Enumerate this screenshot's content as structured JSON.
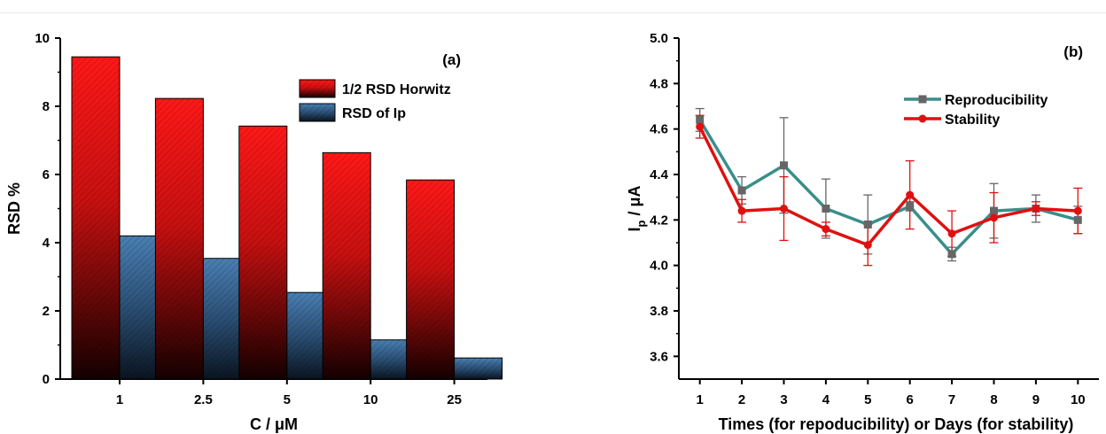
{
  "chart_data": [
    {
      "type": "bar",
      "panel_label": "(a)",
      "xlabel": "C / μM",
      "ylabel": "RSD %",
      "categories": [
        "1",
        "2.5",
        "5",
        "10",
        "25"
      ],
      "ylim": [
        0,
        10
      ],
      "yticks": [
        "0",
        "2",
        "4",
        "6",
        "8",
        "10"
      ],
      "series": [
        {
          "name": "1/2 RSD Horwitz",
          "values": [
            9.45,
            8.23,
            7.42,
            6.64,
            5.84
          ],
          "color": "#e01818"
        },
        {
          "name": "RSD of Ip",
          "values": [
            4.2,
            3.54,
            2.54,
            1.15,
            0.62
          ],
          "color": "#3d6d9e"
        }
      ],
      "legend_position": "top-right",
      "grid": false
    },
    {
      "type": "line",
      "panel_label": "(b)",
      "xlabel": "Times (for repoducibility) or Days (for stability)",
      "ylabel": "Ip / μA",
      "x": [
        1,
        2,
        3,
        4,
        5,
        6,
        7,
        8,
        9,
        10
      ],
      "xlim": [
        0.5,
        10.5
      ],
      "ylim": [
        3.5,
        5.0
      ],
      "yticks": [
        "3.6",
        "3.8",
        "4.0",
        "4.2",
        "4.4",
        "4.6",
        "4.8",
        "5.0"
      ],
      "xticks": [
        "1",
        "2",
        "3",
        "4",
        "5",
        "6",
        "7",
        "8",
        "9",
        "10"
      ],
      "series": [
        {
          "name": "Reproducibility",
          "color": "#3a8e8a",
          "marker": "square",
          "values": [
            4.64,
            4.33,
            4.44,
            4.25,
            4.18,
            4.26,
            4.05,
            4.24,
            4.25,
            4.2
          ],
          "errors": [
            0.05,
            0.06,
            0.21,
            0.13,
            0.13,
            0.02,
            0.03,
            0.12,
            0.06,
            0.06
          ]
        },
        {
          "name": "Stability",
          "color": "#e01010",
          "marker": "circle",
          "values": [
            4.61,
            4.24,
            4.25,
            4.16,
            4.09,
            4.31,
            4.14,
            4.21,
            4.25,
            4.24
          ],
          "errors": [
            0.05,
            0.05,
            0.14,
            0.03,
            0.09,
            0.15,
            0.1,
            0.11,
            0.03,
            0.1
          ]
        }
      ],
      "legend_position": "top-right",
      "grid": false
    }
  ]
}
